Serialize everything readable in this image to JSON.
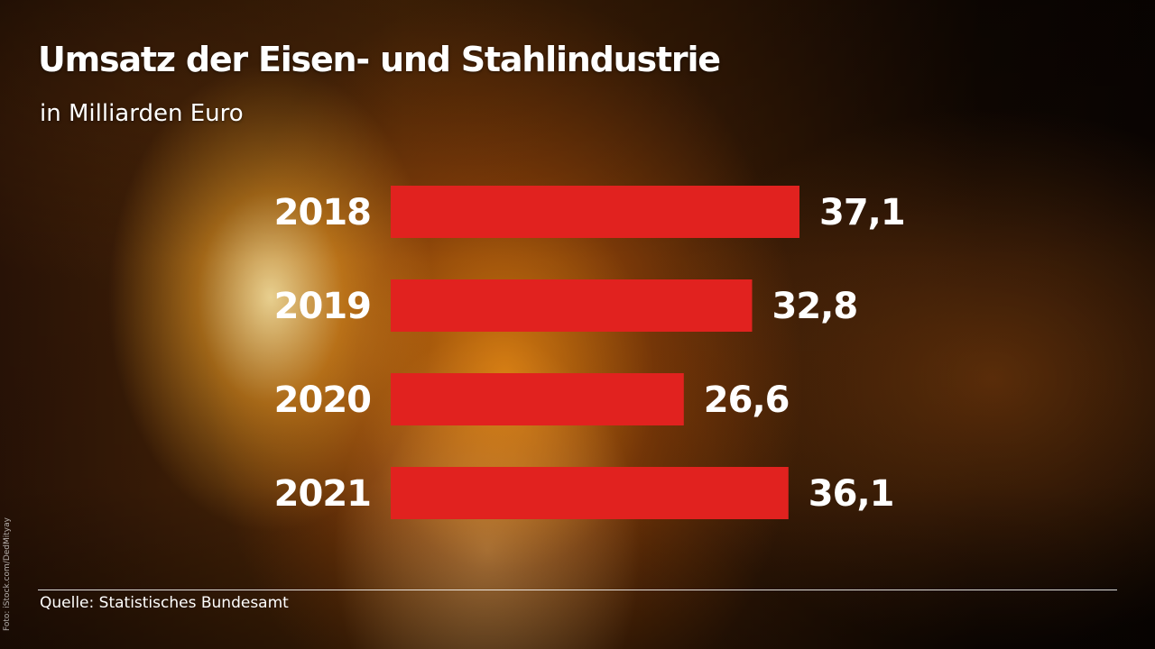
{
  "title": "Umsatz der Eisen- und Stahlindustrie",
  "subtitle": "in Milliarden Euro",
  "source": "Quelle: Statistisches Bundesamt",
  "photo_credit": "Foto: iStock.com/DedMityay",
  "colors": {
    "bar": "#e1221f",
    "text": "#ffffff"
  },
  "chart_data": {
    "type": "bar",
    "orientation": "horizontal",
    "title": "Umsatz der Eisen- und Stahlindustrie",
    "subtitle": "in Milliarden Euro",
    "categories": [
      "2018",
      "2019",
      "2020",
      "2021"
    ],
    "values": [
      37.1,
      32.8,
      26.6,
      36.1
    ],
    "value_labels": [
      "37,1",
      "32,8",
      "26,6",
      "36,1"
    ],
    "unit": "Milliarden Euro",
    "grid": false,
    "legend": "none"
  }
}
